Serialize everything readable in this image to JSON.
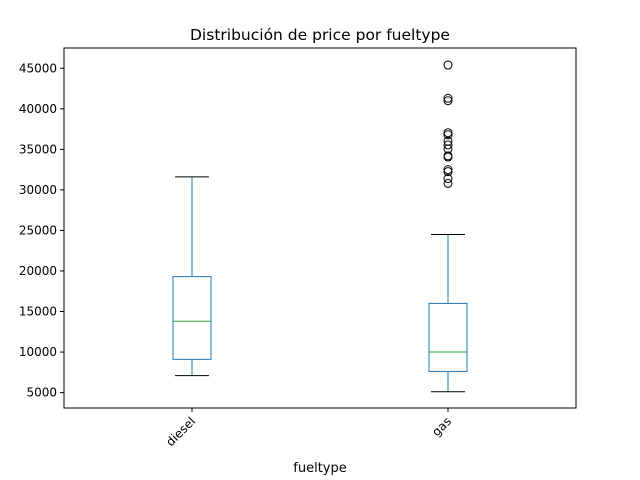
{
  "chart_data": {
    "type": "box",
    "title": "Distribución de price por fueltype",
    "xlabel": "fueltype",
    "ylabel": "",
    "ylim": [
      3100,
      47500
    ],
    "yticks": [
      5000,
      10000,
      15000,
      20000,
      25000,
      30000,
      35000,
      40000,
      45000
    ],
    "ytick_labels": [
      "5000",
      "10000",
      "15000",
      "20000",
      "25000",
      "30000",
      "35000",
      "40000",
      "45000"
    ],
    "categories": [
      "diesel",
      "gas"
    ],
    "xtick_rotation": 45,
    "grid": false,
    "colors": {
      "box": "#1f77b4",
      "median": "#2ca02c",
      "whisker_cap": "#000000",
      "flier": "#000000"
    },
    "boxes": [
      {
        "category": "diesel",
        "whisker_low": 7100,
        "q1": 9100,
        "median": 13800,
        "q3": 19300,
        "whisker_high": 31600,
        "outliers": []
      },
      {
        "category": "gas",
        "whisker_low": 5100,
        "q1": 7600,
        "median": 10000,
        "q3": 16000,
        "whisker_high": 24500,
        "outliers": [
          30800,
          31400,
          32250,
          32500,
          34050,
          34200,
          35050,
          35550,
          36000,
          36800,
          37050,
          41000,
          41300,
          45400
        ]
      }
    ]
  }
}
